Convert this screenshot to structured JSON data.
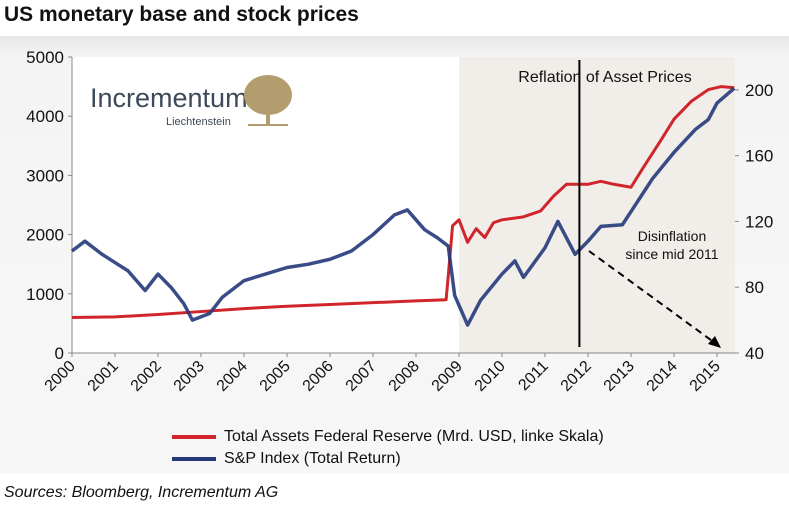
{
  "title": "US monetary base and stock prices",
  "sources": "Sources: Bloomberg, Incrementum AG",
  "logo": {
    "name": "Incrementum",
    "sub": "Liechtenstein",
    "color": "#b39c6e"
  },
  "chart_data": {
    "type": "line",
    "title": "US monetary base and stock prices",
    "xlim": [
      2000,
      2015.4
    ],
    "x_ticks": [
      "2000",
      "2001",
      "2002",
      "2003",
      "2004",
      "2005",
      "2006",
      "2007",
      "2008",
      "2009",
      "2010",
      "2011",
      "2012",
      "2013",
      "2014",
      "2015"
    ],
    "y_left": {
      "lim": [
        0,
        5000
      ],
      "ticks": [
        "0",
        "1000",
        "2000",
        "3000",
        "4000",
        "5000"
      ]
    },
    "y_right": {
      "lim": [
        40,
        220
      ],
      "ticks": [
        "40",
        "80",
        "120",
        "160",
        "200"
      ]
    },
    "grid": false,
    "legend": "bottom",
    "shaded_region": {
      "from": 2009,
      "to": 2015.4,
      "color": "#f1eeea"
    },
    "vertical_line": 2011.8,
    "annotations": [
      {
        "text": "Reflation of Asset Prices"
      },
      {
        "text": "Disinflation"
      },
      {
        "text": "since mid 2011"
      }
    ],
    "series": [
      {
        "name": "Total Assets Federal Reserve (Mrd. USD, linke Skala)",
        "axis": "left",
        "color": "#d0262b",
        "x": [
          2000,
          2001,
          2002,
          2003,
          2004,
          2005,
          2006,
          2007,
          2008,
          2008.7,
          2008.75,
          2008.85,
          2009,
          2009.2,
          2009.4,
          2009.6,
          2009.8,
          2010,
          2010.5,
          2010.9,
          2011.2,
          2011.5,
          2011.8,
          2012,
          2012.3,
          2012.6,
          2013,
          2013.3,
          2013.7,
          2014,
          2014.4,
          2014.8,
          2015.1,
          2015.4
        ],
        "y": [
          600,
          610,
          650,
          700,
          750,
          790,
          820,
          850,
          880,
          900,
          1300,
          2150,
          2250,
          1870,
          2100,
          1950,
          2200,
          2250,
          2300,
          2400,
          2650,
          2850,
          2850,
          2850,
          2900,
          2850,
          2800,
          3150,
          3600,
          3950,
          4250,
          4450,
          4500,
          4480
        ]
      },
      {
        "name": "S&P Index (Total Return)",
        "axis": "right",
        "color": "#24397a",
        "x": [
          2000,
          2000.3,
          2000.7,
          2001,
          2001.3,
          2001.7,
          2002,
          2002.3,
          2002.6,
          2002.8,
          2003.2,
          2003.5,
          2004,
          2004.5,
          2005,
          2005.5,
          2006,
          2006.5,
          2007,
          2007.5,
          2007.8,
          2008.2,
          2008.5,
          2008.75,
          2008.9,
          2009.2,
          2009.5,
          2010,
          2010.3,
          2010.5,
          2011,
          2011.3,
          2011.7,
          2012,
          2012.3,
          2012.8,
          2013,
          2013.5,
          2014,
          2014.5,
          2014.8,
          2015,
          2015.4
        ],
        "y": [
          102,
          108,
          100,
          95,
          90,
          78,
          88,
          80,
          70,
          60,
          64,
          74,
          84,
          88,
          92,
          94,
          97,
          102,
          112,
          124,
          127,
          115,
          110,
          105,
          75,
          57,
          72,
          88,
          96,
          86,
          104,
          120,
          100,
          108,
          117,
          118,
          126,
          146,
          162,
          176,
          182,
          192,
          201
        ]
      }
    ]
  }
}
